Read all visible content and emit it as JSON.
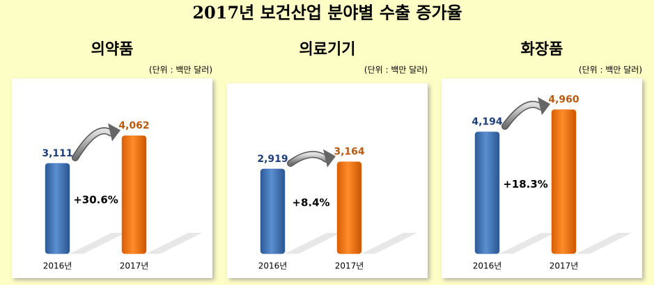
{
  "title": "2017년 보건산업 분야별 수출 증가율",
  "chart_data": [
    {
      "type": "bar",
      "title": "의약품",
      "subtitle": "(단위 : 백만 달러)",
      "categories": [
        "2016년",
        "2017년"
      ],
      "values": [
        3111,
        4062
      ],
      "value_labels": [
        "3,111",
        "4,062"
      ],
      "colors": [
        "#3b6db0",
        "#e8700e"
      ],
      "annotation": "+30.6%"
    },
    {
      "type": "bar",
      "title": "의료기기",
      "subtitle": "(단위 : 백만 달러)",
      "categories": [
        "2016년",
        "2017년"
      ],
      "values": [
        2919,
        3164
      ],
      "value_labels": [
        "2,919",
        "3,164"
      ],
      "colors": [
        "#3b6db0",
        "#e8700e"
      ],
      "annotation": "+8.4%"
    },
    {
      "type": "bar",
      "title": "화장품",
      "subtitle": "(단위 : 백만 달러)",
      "categories": [
        "2016년",
        "2017년"
      ],
      "values": [
        4194,
        4960
      ],
      "value_labels": [
        "4,194",
        "4,960"
      ],
      "colors": [
        "#3b6db0",
        "#e8700e"
      ],
      "annotation": "+18.3%"
    }
  ]
}
